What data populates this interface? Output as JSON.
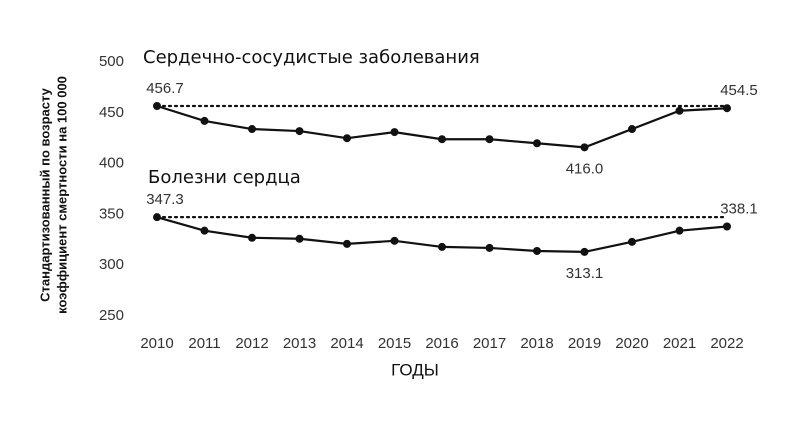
{
  "chart_data": {
    "type": "line",
    "x_label": "ГОДЫ",
    "y_label": [
      "Стандартизованный по возрасту",
      "коэффициент смертности на 100 000"
    ],
    "categories": [
      "2010",
      "2011",
      "2012",
      "2013",
      "2014",
      "2015",
      "2016",
      "2017",
      "2018",
      "2019",
      "2020",
      "2021",
      "2022"
    ],
    "series": [
      {
        "name": "Сердечно-сосудистые заболевания",
        "color": "#111111",
        "values": [
          456.7,
          442,
          434,
          432,
          425,
          431,
          424,
          424,
          420,
          416.0,
          434,
          452,
          454.5
        ],
        "value_labels": [
          "456.7",
          null,
          null,
          null,
          null,
          null,
          null,
          null,
          null,
          "416.0",
          null,
          null,
          "454.5"
        ]
      },
      {
        "name": "Болезни сердца",
        "color": "#111111",
        "values": [
          347.3,
          334,
          327,
          326,
          321,
          324,
          318,
          317,
          314,
          313.1,
          323,
          334,
          338.1
        ],
        "value_labels": [
          "347.3",
          null,
          null,
          null,
          null,
          null,
          null,
          null,
          null,
          "313.1",
          null,
          null,
          "338.1"
        ]
      }
    ],
    "ylim": [
      250,
      500
    ],
    "yticks": [
      250,
      300,
      350,
      400,
      450,
      500
    ],
    "grid": false,
    "reference_lines": true
  }
}
